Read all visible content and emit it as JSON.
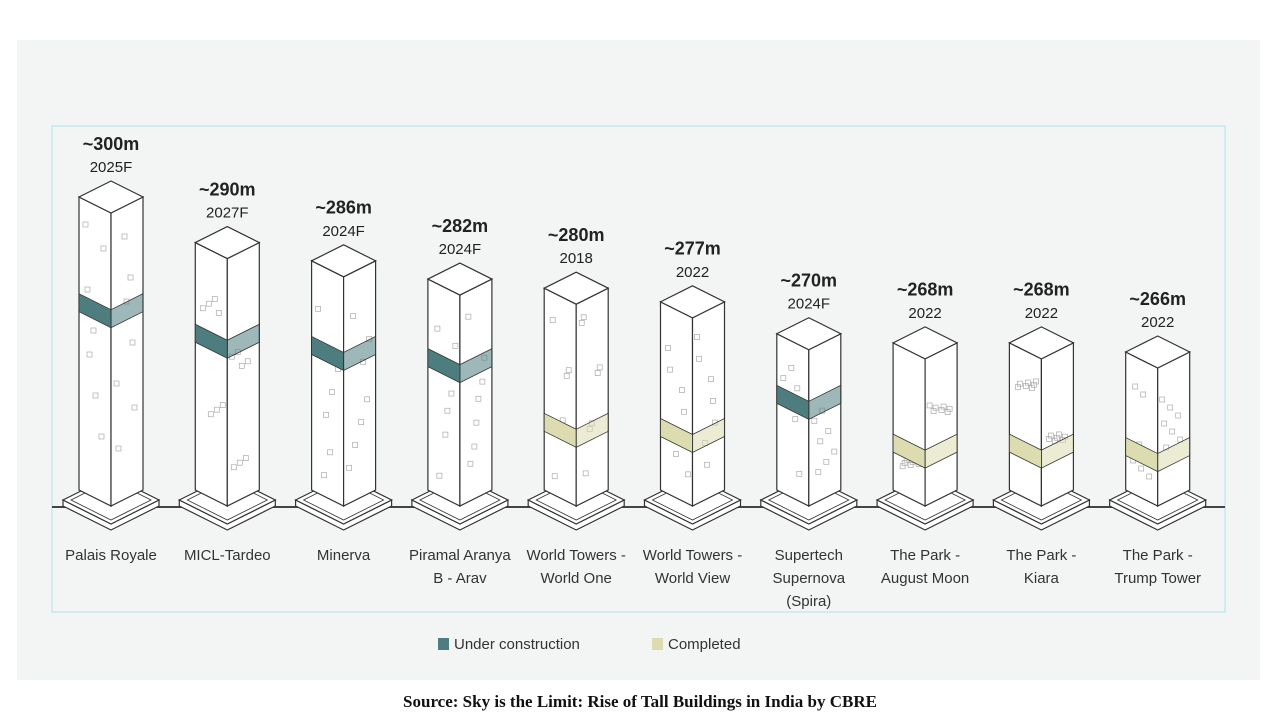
{
  "chart_data": {
    "type": "tower",
    "categories": [
      [
        "Palais Royale"
      ],
      [
        "MICL-Tardeo"
      ],
      [
        "Minerva"
      ],
      [
        "Piramal Aranya",
        "B - Arav"
      ],
      [
        "World Towers -",
        "World One"
      ],
      [
        "World Towers -",
        "World View"
      ],
      [
        "Supertech",
        "Supernova",
        "(Spira)"
      ],
      [
        "The Park -",
        "August Moon"
      ],
      [
        "The Park -",
        "Kiara"
      ],
      [
        "The Park -",
        "Trump Tower"
      ]
    ],
    "years": [
      "2025F",
      "2027F",
      "2024F",
      "2024F",
      "2018",
      "2022",
      "2024F",
      "2022",
      "2022",
      "2022"
    ],
    "series": [
      {
        "name": "Under construction",
        "color": "#4e7d80",
        "values": [
          300,
          290,
          286,
          282,
          null,
          null,
          270,
          null,
          null,
          null
        ],
        "value_labels": [
          "~300m",
          "~290m",
          "~286m",
          "~282m",
          null,
          null,
          "~270m",
          null,
          null,
          null
        ]
      },
      {
        "name": "Completed",
        "color": "#dcdcb0",
        "values": [
          null,
          null,
          null,
          null,
          280,
          277,
          null,
          268,
          268,
          266
        ],
        "value_labels": [
          null,
          null,
          null,
          null,
          "~280m",
          "~277m",
          null,
          "~268m",
          "~268m",
          "~266m"
        ]
      }
    ]
  },
  "source": "Source: Sky is the Limit: Rise of Tall Buildings in India by CBRE"
}
